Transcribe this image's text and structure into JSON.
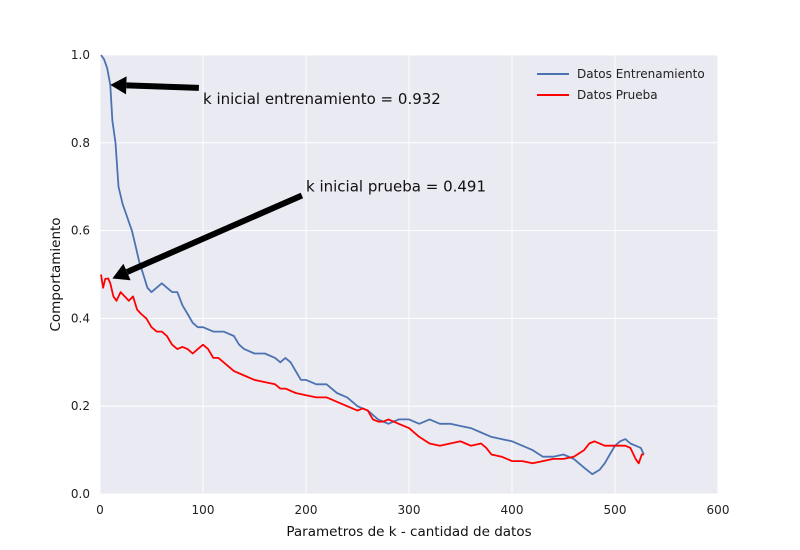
{
  "chart_data": {
    "type": "line",
    "title": "",
    "xlabel": "Parametros de k - cantidad de datos",
    "ylabel": "Comportamiento",
    "xlim": [
      0,
      600
    ],
    "ylim": [
      0.0,
      1.0
    ],
    "xticks": [
      "0",
      "100",
      "200",
      "300",
      "400",
      "500",
      "600"
    ],
    "yticks": [
      "0.0",
      "0.2",
      "0.4",
      "0.6",
      "0.8",
      "1.0"
    ],
    "grid": true,
    "legend_position": "top-right",
    "background": "#eaeaf2",
    "series": [
      {
        "name": "Datos Entrenamiento",
        "color": "#4c72b0",
        "points": [
          [
            1,
            1.0
          ],
          [
            4,
            0.99
          ],
          [
            7,
            0.97
          ],
          [
            10,
            0.932
          ],
          [
            12,
            0.85
          ],
          [
            15,
            0.8
          ],
          [
            18,
            0.7
          ],
          [
            22,
            0.66
          ],
          [
            25,
            0.64
          ],
          [
            28,
            0.62
          ],
          [
            31,
            0.6
          ],
          [
            35,
            0.56
          ],
          [
            38,
            0.53
          ],
          [
            42,
            0.5
          ],
          [
            46,
            0.47
          ],
          [
            50,
            0.46
          ],
          [
            55,
            0.47
          ],
          [
            60,
            0.48
          ],
          [
            65,
            0.47
          ],
          [
            70,
            0.46
          ],
          [
            75,
            0.46
          ],
          [
            80,
            0.43
          ],
          [
            85,
            0.41
          ],
          [
            90,
            0.39
          ],
          [
            95,
            0.38
          ],
          [
            100,
            0.38
          ],
          [
            110,
            0.37
          ],
          [
            120,
            0.37
          ],
          [
            130,
            0.36
          ],
          [
            135,
            0.34
          ],
          [
            140,
            0.33
          ],
          [
            150,
            0.32
          ],
          [
            160,
            0.32
          ],
          [
            170,
            0.31
          ],
          [
            175,
            0.3
          ],
          [
            180,
            0.31
          ],
          [
            185,
            0.3
          ],
          [
            190,
            0.28
          ],
          [
            195,
            0.26
          ],
          [
            200,
            0.26
          ],
          [
            210,
            0.25
          ],
          [
            220,
            0.25
          ],
          [
            230,
            0.23
          ],
          [
            240,
            0.22
          ],
          [
            250,
            0.2
          ],
          [
            260,
            0.19
          ],
          [
            270,
            0.17
          ],
          [
            280,
            0.16
          ],
          [
            290,
            0.17
          ],
          [
            300,
            0.17
          ],
          [
            310,
            0.16
          ],
          [
            320,
            0.17
          ],
          [
            330,
            0.16
          ],
          [
            340,
            0.16
          ],
          [
            350,
            0.155
          ],
          [
            360,
            0.15
          ],
          [
            370,
            0.14
          ],
          [
            380,
            0.13
          ],
          [
            390,
            0.125
          ],
          [
            400,
            0.12
          ],
          [
            410,
            0.11
          ],
          [
            420,
            0.1
          ],
          [
            430,
            0.085
          ],
          [
            440,
            0.085
          ],
          [
            450,
            0.09
          ],
          [
            460,
            0.08
          ],
          [
            470,
            0.06
          ],
          [
            478,
            0.045
          ],
          [
            485,
            0.055
          ],
          [
            490,
            0.07
          ],
          [
            495,
            0.09
          ],
          [
            500,
            0.11
          ],
          [
            505,
            0.12
          ],
          [
            510,
            0.125
          ],
          [
            515,
            0.115
          ],
          [
            520,
            0.11
          ],
          [
            525,
            0.105
          ],
          [
            528,
            0.09
          ]
        ]
      },
      {
        "name": "Datos Prueba",
        "color": "#ff0000",
        "points": [
          [
            1,
            0.5
          ],
          [
            3,
            0.47
          ],
          [
            5,
            0.49
          ],
          [
            8,
            0.491
          ],
          [
            10,
            0.48
          ],
          [
            13,
            0.45
          ],
          [
            16,
            0.44
          ],
          [
            20,
            0.46
          ],
          [
            24,
            0.45
          ],
          [
            28,
            0.44
          ],
          [
            32,
            0.45
          ],
          [
            36,
            0.42
          ],
          [
            40,
            0.41
          ],
          [
            45,
            0.4
          ],
          [
            50,
            0.38
          ],
          [
            55,
            0.37
          ],
          [
            60,
            0.37
          ],
          [
            65,
            0.36
          ],
          [
            70,
            0.34
          ],
          [
            75,
            0.33
          ],
          [
            80,
            0.335
          ],
          [
            85,
            0.33
          ],
          [
            90,
            0.32
          ],
          [
            95,
            0.33
          ],
          [
            100,
            0.34
          ],
          [
            105,
            0.33
          ],
          [
            110,
            0.31
          ],
          [
            115,
            0.31
          ],
          [
            120,
            0.3
          ],
          [
            130,
            0.28
          ],
          [
            140,
            0.27
          ],
          [
            150,
            0.26
          ],
          [
            160,
            0.255
          ],
          [
            170,
            0.25
          ],
          [
            175,
            0.24
          ],
          [
            180,
            0.24
          ],
          [
            190,
            0.23
          ],
          [
            200,
            0.225
          ],
          [
            210,
            0.22
          ],
          [
            220,
            0.22
          ],
          [
            225,
            0.215
          ],
          [
            230,
            0.21
          ],
          [
            240,
            0.2
          ],
          [
            250,
            0.19
          ],
          [
            255,
            0.195
          ],
          [
            260,
            0.19
          ],
          [
            265,
            0.17
          ],
          [
            270,
            0.165
          ],
          [
            275,
            0.165
          ],
          [
            280,
            0.17
          ],
          [
            285,
            0.165
          ],
          [
            290,
            0.16
          ],
          [
            300,
            0.15
          ],
          [
            310,
            0.13
          ],
          [
            320,
            0.115
          ],
          [
            330,
            0.11
          ],
          [
            340,
            0.115
          ],
          [
            350,
            0.12
          ],
          [
            355,
            0.115
          ],
          [
            360,
            0.11
          ],
          [
            370,
            0.115
          ],
          [
            375,
            0.105
          ],
          [
            380,
            0.09
          ],
          [
            390,
            0.085
          ],
          [
            400,
            0.075
          ],
          [
            410,
            0.075
          ],
          [
            420,
            0.07
          ],
          [
            430,
            0.075
          ],
          [
            440,
            0.08
          ],
          [
            450,
            0.08
          ],
          [
            460,
            0.085
          ],
          [
            470,
            0.1
          ],
          [
            475,
            0.115
          ],
          [
            480,
            0.12
          ],
          [
            490,
            0.11
          ],
          [
            500,
            0.11
          ],
          [
            510,
            0.11
          ],
          [
            515,
            0.105
          ],
          [
            520,
            0.08
          ],
          [
            523,
            0.07
          ],
          [
            526,
            0.09
          ],
          [
            528,
            0.09
          ]
        ]
      }
    ],
    "annotations": [
      {
        "text": "k inicial entrenamiento = 0.932",
        "text_at": [
          100,
          0.9
        ],
        "arrow_to": [
          10,
          0.932
        ],
        "arrow_from": [
          96,
          0.925
        ]
      },
      {
        "text": "k inicial prueba = 0.491",
        "text_at": [
          200,
          0.7
        ],
        "arrow_to": [
          12,
          0.491
        ],
        "arrow_from": [
          196,
          0.68
        ]
      }
    ]
  }
}
